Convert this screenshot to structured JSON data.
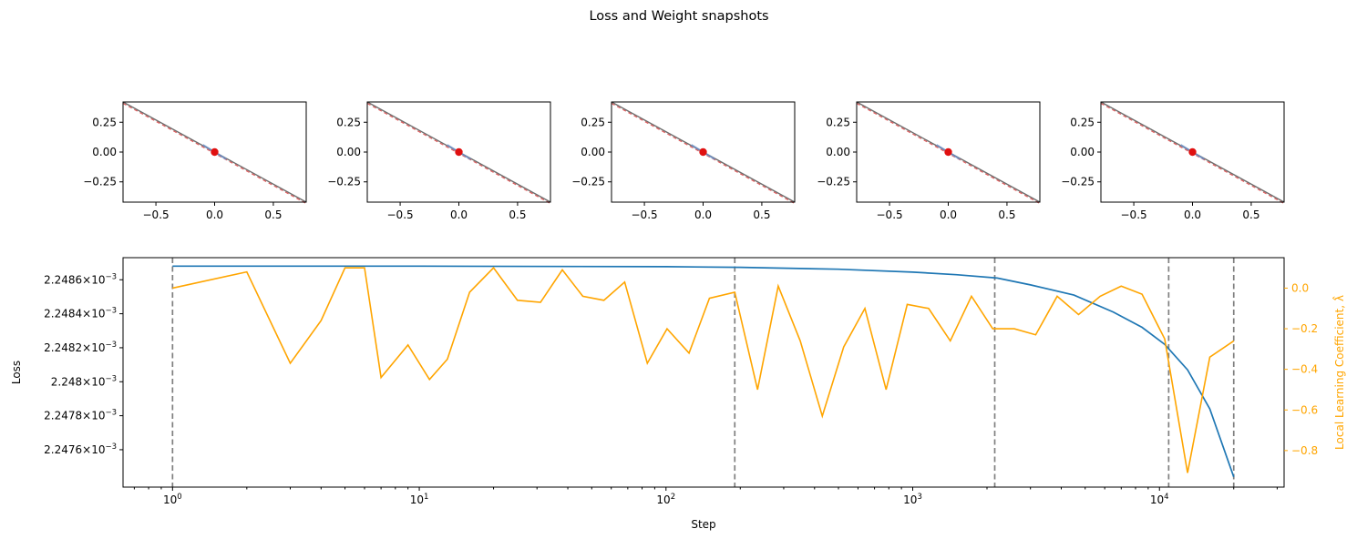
{
  "figure_title": "Loss and Weight snapshots",
  "colors": {
    "loss": "#1f77b4",
    "llc": "#ffa500",
    "snapshot_dashed": "#d62728",
    "snapshot_point": "#e01010",
    "vline": "#808080",
    "axes": "#000000"
  },
  "chart_data": [
    {
      "type": "line",
      "id": "snapshot",
      "count": 5,
      "xlim": [
        -0.78,
        0.78
      ],
      "ylim": [
        -0.42,
        0.42
      ],
      "xticks": [
        -0.5,
        0.0,
        0.5
      ],
      "xtick_labels": [
        "−0.5",
        "0.0",
        "0.5"
      ],
      "yticks": [
        0.25,
        0.0,
        -0.25
      ],
      "ytick_labels": [
        "0.25",
        "0.00",
        "−0.25"
      ],
      "series": [
        {
          "name": "solid line",
          "x": [
            -0.78,
            0.78
          ],
          "y": [
            0.42,
            -0.42
          ]
        },
        {
          "name": "dashed line",
          "x": [
            -0.78,
            0.78
          ],
          "y": [
            0.42,
            -0.42
          ]
        }
      ],
      "point": {
        "x": 0.0,
        "y": 0.0
      }
    },
    {
      "type": "line",
      "id": "loss",
      "xscale": "log",
      "xlim": [
        0.63,
        32000
      ],
      "xlabel": "Step",
      "xtick_exponents": [
        0,
        1,
        2,
        3,
        4
      ],
      "ylabel": "Loss",
      "ylim": [
        0.00224738,
        0.00224873
      ],
      "yticks": [
        0.0022476,
        0.0022478,
        0.002248,
        0.0022482,
        0.0022484,
        0.0022486
      ],
      "ytick_labels": [
        "2.2476",
        "2.2478",
        "2.248",
        "2.2482",
        "2.2484",
        "2.2486"
      ],
      "ytick_suffix": "×10",
      "ytick_exponent": "−3",
      "y2label": "Local Learning Coefficient, λ̂",
      "y2lim": [
        -0.98,
        0.15
      ],
      "y2ticks": [
        0.0,
        -0.2,
        -0.4,
        -0.6,
        -0.8
      ],
      "y2tick_labels": [
        "0.0",
        "−0.2",
        "−0.4",
        "−0.6",
        "−0.8"
      ],
      "vlines": [
        1,
        190,
        2150,
        10900,
        20000
      ],
      "series": [
        {
          "name": "Loss",
          "x": [
            1,
            10,
            100,
            200,
            500,
            1000,
            1500,
            2200,
            3000,
            4500,
            6500,
            8500,
            10500,
            13000,
            16000,
            20000
          ],
          "y": [
            0.00224868,
            0.00224868,
            0.002248677,
            0.002248673,
            0.002248662,
            0.002248645,
            0.00224863,
            0.00224861,
            0.00224857,
            0.00224851,
            0.00224841,
            0.00224832,
            0.00224822,
            0.00224807,
            0.00224784,
            0.00224744
          ]
        },
        {
          "name": "Local Learning Coefficient",
          "axis": "right",
          "x": [
            1,
            2,
            3,
            4,
            5,
            6,
            7,
            9,
            11,
            13,
            16,
            20,
            25,
            31,
            38,
            46,
            56,
            68,
            84,
            101,
            124,
            150,
            190,
            235,
            285,
            350,
            430,
            525,
            640,
            780,
            950,
            1160,
            1420,
            1730,
            2110,
            2580,
            3150,
            3850,
            4700,
            5750,
            7000,
            8500,
            10500,
            13000,
            16000,
            20000
          ],
          "y": [
            0.0,
            0.08,
            -0.37,
            -0.16,
            0.1,
            0.1,
            -0.44,
            -0.28,
            -0.45,
            -0.35,
            -0.02,
            0.1,
            -0.06,
            -0.07,
            0.09,
            -0.04,
            -0.06,
            0.03,
            -0.37,
            -0.2,
            -0.32,
            -0.05,
            -0.02,
            -0.5,
            0.01,
            -0.26,
            -0.63,
            -0.29,
            -0.1,
            -0.5,
            -0.08,
            -0.1,
            -0.26,
            -0.04,
            -0.2,
            -0.2,
            -0.23,
            -0.04,
            -0.13,
            -0.04,
            0.01,
            -0.03,
            -0.25,
            -0.91,
            -0.34,
            -0.26
          ]
        }
      ]
    }
  ]
}
